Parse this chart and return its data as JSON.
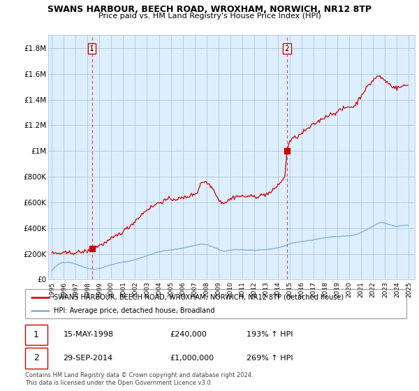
{
  "title": "SWANS HARBOUR, BEECH ROAD, WROXHAM, NORWICH, NR12 8TP",
  "subtitle": "Price paid vs. HM Land Registry's House Price Index (HPI)",
  "ylim": [
    0,
    1900000
  ],
  "yticks": [
    0,
    200000,
    400000,
    600000,
    800000,
    1000000,
    1200000,
    1400000,
    1600000,
    1800000
  ],
  "ytick_labels": [
    "£0",
    "£200K",
    "£400K",
    "£600K",
    "£800K",
    "£1M",
    "£1.2M",
    "£1.4M",
    "£1.6M",
    "£1.8M"
  ],
  "xlim_start": 1994.7,
  "xlim_end": 2025.5,
  "sale1_x": 1998.37,
  "sale1_y": 240000,
  "sale2_x": 2014.75,
  "sale2_y": 1000000,
  "legend_line1": "SWANS HARBOUR, BEECH ROAD, WROXHAM, NORWICH, NR12 8TP (detached house)",
  "legend_line2": "HPI: Average price, detached house, Broadland",
  "annotation1_label": "1",
  "annotation1_date": "15-MAY-1998",
  "annotation1_price": "£240,000",
  "annotation1_hpi": "193% ↑ HPI",
  "annotation2_label": "2",
  "annotation2_date": "29-SEP-2014",
  "annotation2_price": "£1,000,000",
  "annotation2_hpi": "269% ↑ HPI",
  "footer": "Contains HM Land Registry data © Crown copyright and database right 2024.\nThis data is licensed under the Open Government Licence v3.0.",
  "price_color": "#cc0000",
  "hpi_color": "#7aacdc",
  "vline_color": "#cc0000",
  "bg_color": "#ddeeff",
  "grid_color": "#aabbcc"
}
